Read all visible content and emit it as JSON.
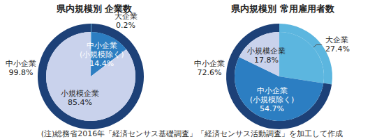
{
  "chart_data": [
    {
      "type": "pie",
      "title": "県内規模別 企業数",
      "data_labels": true,
      "series": [
        {
          "categories": [
            "大企業",
            "中小企業\n(小規模除く)",
            "小規模企業"
          ],
          "values": [
            0.2,
            14.4,
            85.4
          ],
          "value_labels": [
            "0.2%",
            "14.4%",
            "85.4%"
          ],
          "colors": [
            "#5cb6df",
            "#2c7ec2",
            "#c9d2ec"
          ]
        },
        {
          "categories": [
            null,
            "中小企業"
          ],
          "values": [
            0.2,
            99.8
          ],
          "value_labels": [
            null,
            "99.8%"
          ],
          "colors": [
            "#5cb6df",
            "#1d4178"
          ]
        }
      ]
    },
    {
      "type": "pie",
      "title": "県内規模別 常用雇用者数",
      "data_labels": true,
      "series": [
        {
          "categories": [
            "大企業",
            "中小企業\n(小規模除く)",
            "小規模企業"
          ],
          "values": [
            27.4,
            54.7,
            17.8
          ],
          "value_labels": [
            "27.4%",
            "54.7%",
            "17.8%"
          ],
          "colors": [
            "#5cb6df",
            "#2c7ec2",
            "#c9d2ec"
          ]
        },
        {
          "categories": [
            null,
            "中小企業"
          ],
          "values": [
            27.4,
            72.6
          ],
          "value_labels": [
            null,
            "72.6%"
          ],
          "colors": [
            "#5cb6df",
            "#1d4178"
          ]
        }
      ]
    }
  ],
  "footnote": "(注)総務省2016年「経済センサス基礎調査」「経済センサス活動調査」を加工して作成"
}
